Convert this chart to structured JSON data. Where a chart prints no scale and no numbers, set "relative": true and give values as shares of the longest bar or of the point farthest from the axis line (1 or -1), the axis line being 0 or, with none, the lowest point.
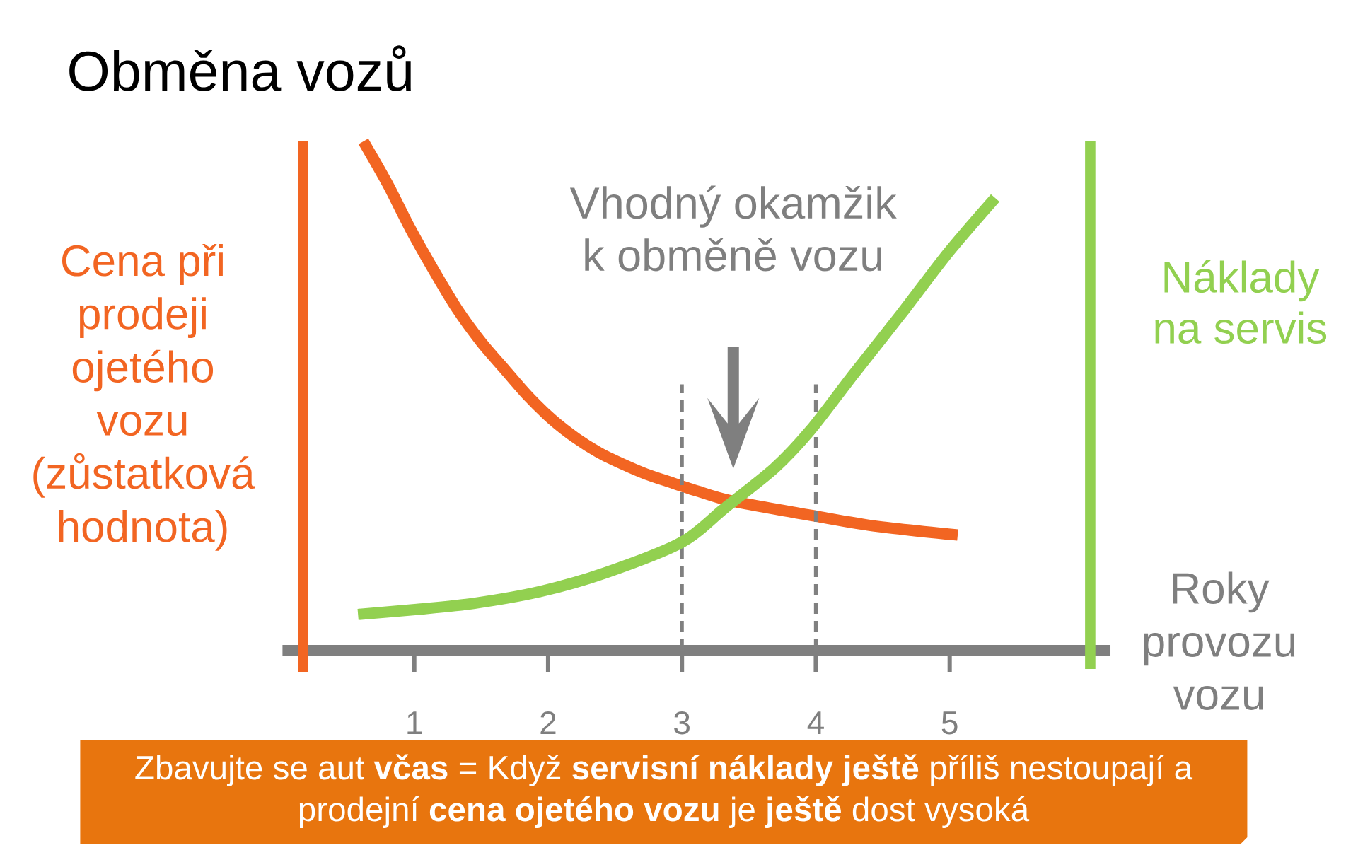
{
  "chart_data": {
    "type": "line",
    "title": "Obměna vozů",
    "xlabel": "Roky provozu vozu",
    "ylabel": "Cena při prodeji ojetého vozu (zůstatková hodnota)",
    "y2label": "Náklady na servis",
    "relative": true,
    "xlim": [
      0.17,
      6.05
    ],
    "xticks": [
      1,
      2,
      3,
      4,
      5
    ],
    "series": [
      {
        "color": "#f26522",
        "x": [
          0.62,
          0.8,
          0.97,
          1.15,
          1.32,
          1.5,
          1.68,
          1.85,
          2.03,
          2.21,
          2.38,
          2.56,
          2.73,
          2.91,
          3.12,
          3.37,
          4.0,
          4.46,
          5.06
        ],
        "values": [
          1,
          0.917,
          0.829,
          0.745,
          0.671,
          0.606,
          0.551,
          0.5,
          0.454,
          0.417,
          0.389,
          0.366,
          0.347,
          0.331,
          0.313,
          0.294,
          0.264,
          0.244,
          0.227
        ]
      },
      {
        "color": "#92d050",
        "axis": "y2",
        "x": [
          0.58,
          1.02,
          1.45,
          1.94,
          2.43,
          3.0,
          3.32,
          3.69,
          3.96,
          4.28,
          4.64,
          4.99,
          5.34
        ],
        "values": [
          0.071,
          0.081,
          0.093,
          0.116,
          0.153,
          0.213,
          0.28,
          0.358,
          0.433,
          0.542,
          0.662,
          0.782,
          0.889
        ]
      }
    ],
    "ref_lines": [
      {
        "axis": "x",
        "value": 3,
        "color": "#808080",
        "line_style": "dashed"
      },
      {
        "axis": "x",
        "value": 4,
        "color": "#808080",
        "line_style": "dashed"
      }
    ],
    "annotations": [
      "Vhodný okamžik k obměně vozu",
      "Zbavujte se aut **včas** = Když **servisní náklady ještě** příliš nestoupají a prodejní **cena ojetého vozu** je **ještě** dost vysoká"
    ]
  }
}
